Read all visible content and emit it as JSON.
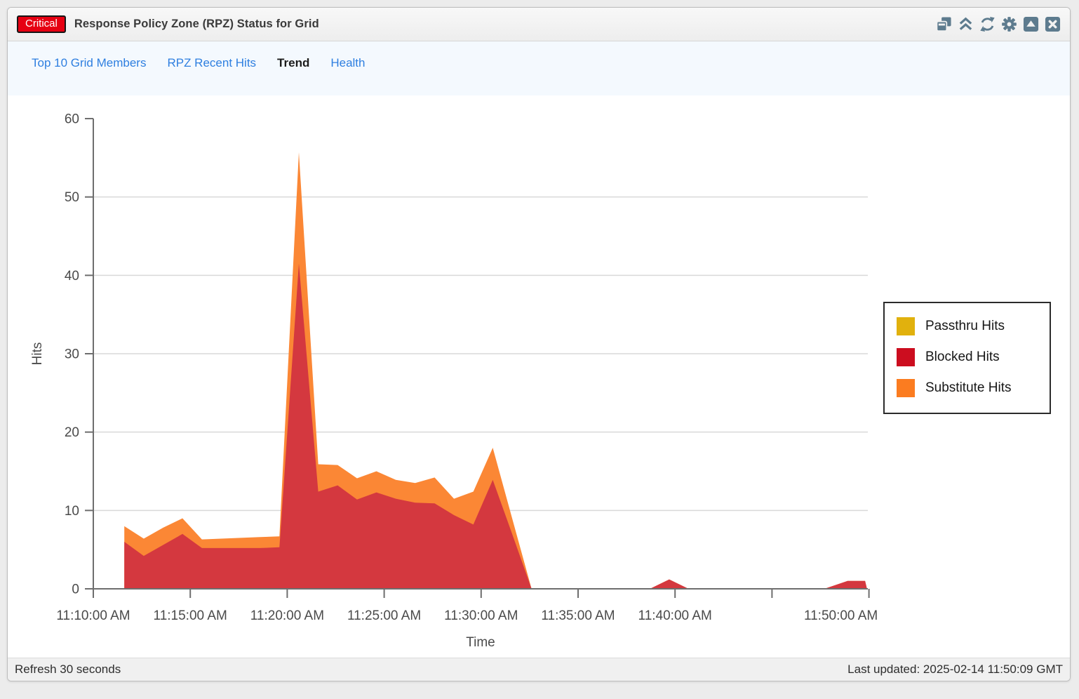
{
  "window": {
    "severity_badge": "Critical",
    "title": "Response Policy Zone (RPZ) Status for Grid",
    "controls": [
      "cascade-windows",
      "collapse-all",
      "refresh",
      "settings-gear",
      "collapse-panel",
      "close-panel"
    ]
  },
  "tabs": [
    {
      "label": "Top 10 Grid Members",
      "active": false
    },
    {
      "label": "RPZ Recent Hits",
      "active": false
    },
    {
      "label": "Trend",
      "active": true
    },
    {
      "label": "Health",
      "active": false
    }
  ],
  "chart_data": {
    "type": "area",
    "stacked": true,
    "title": "",
    "xlabel": "Time",
    "ylabel": "Hits",
    "ylim": [
      0,
      60
    ],
    "y_ticks": [
      0,
      10,
      20,
      30,
      40,
      50,
      60
    ],
    "grid": "horizontal",
    "legend_position": "right-overlay",
    "x_unit": "minutes after 11:10:00 AM",
    "x_axis_ticks": [
      {
        "minutes": 0,
        "label": "11:10:00 AM"
      },
      {
        "minutes": 5,
        "label": "11:15:00 AM"
      },
      {
        "minutes": 10,
        "label": "11:20:00 AM"
      },
      {
        "minutes": 15,
        "label": "11:25:00 AM"
      },
      {
        "minutes": 20,
        "label": "11:30:00 AM"
      },
      {
        "minutes": 25,
        "label": "11:35:00 AM"
      },
      {
        "minutes": 30,
        "label": "11:40:00 AM"
      },
      {
        "minutes": 35,
        "label": ""
      },
      {
        "minutes": 40,
        "label": "11:50:00 AM",
        "label_dx": -40
      }
    ],
    "x_minutes": [
      1.6,
      2.6,
      3.6,
      4.6,
      5.6,
      6.6,
      7.6,
      8.6,
      9.6,
      10.6,
      11.6,
      12.6,
      13.6,
      14.6,
      15.6,
      16.6,
      17.6,
      18.6,
      19.6,
      20.6,
      21.6,
      22.6,
      28.7,
      29.7,
      30.7,
      37.7,
      38.9,
      39.8,
      39.9
    ],
    "series": [
      {
        "name": "Passthru Hits",
        "color": "#e1b10d",
        "area_fill": "#e8c23e",
        "values": [
          0,
          0,
          0,
          0,
          0,
          0,
          0,
          0,
          0,
          0,
          0,
          0,
          0,
          0,
          0,
          0,
          0,
          0,
          0,
          0,
          0,
          0,
          0,
          0,
          0,
          0,
          0,
          0,
          0
        ]
      },
      {
        "name": "Blocked Hits",
        "color": "#cc0d1f",
        "area_fill": "#d4383f",
        "values": [
          6.0,
          4.2,
          5.6,
          7.0,
          5.2,
          5.2,
          5.2,
          5.2,
          5.3,
          41.5,
          12.4,
          13.2,
          11.4,
          12.3,
          11.5,
          11.0,
          10.9,
          9.4,
          8.2,
          13.9,
          7.0,
          0,
          0,
          1.2,
          0,
          0,
          1.0,
          1.0,
          0
        ]
      },
      {
        "name": "Substitute Hits",
        "color": "#fb7c20",
        "area_fill": "#fb8735",
        "values": [
          2.0,
          2.2,
          2.2,
          2.0,
          1.1,
          1.2,
          1.3,
          1.4,
          1.4,
          14.2,
          3.5,
          2.6,
          2.7,
          2.7,
          2.4,
          2.5,
          3.3,
          2.1,
          4.2,
          4.1,
          2.0,
          0,
          0,
          0,
          0,
          0,
          0,
          0,
          0
        ]
      }
    ]
  },
  "footer": {
    "refresh": "Refresh 30 seconds",
    "last_updated": "Last updated: 2025-02-14 11:50:09 GMT"
  },
  "colors": {
    "severity_red": "#e60012",
    "tab_link_blue": "#2e7fe0",
    "titlebar_icon": "#5d7b8e",
    "tabbar_bg": "#f4f9fe",
    "footer_bg": "#f0f0f0",
    "gridline": "#d9d9d9",
    "axis": "#6e6e6e"
  }
}
